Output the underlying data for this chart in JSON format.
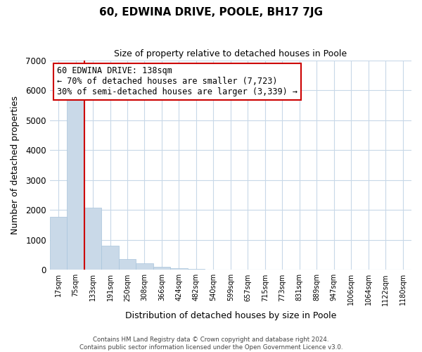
{
  "title": "60, EDWINA DRIVE, POOLE, BH17 7JG",
  "subtitle": "Size of property relative to detached houses in Poole",
  "xlabel": "Distribution of detached houses by size in Poole",
  "ylabel": "Number of detached properties",
  "bar_labels": [
    "17sqm",
    "75sqm",
    "133sqm",
    "191sqm",
    "250sqm",
    "308sqm",
    "366sqm",
    "424sqm",
    "482sqm",
    "540sqm",
    "599sqm",
    "657sqm",
    "715sqm",
    "773sqm",
    "831sqm",
    "889sqm",
    "947sqm",
    "1006sqm",
    "1064sqm",
    "1122sqm",
    "1180sqm"
  ],
  "bar_values": [
    1775,
    5780,
    2075,
    810,
    365,
    225,
    105,
    55,
    35,
    10,
    0,
    0,
    0,
    0,
    0,
    0,
    0,
    0,
    0,
    0,
    0
  ],
  "bar_color": "#c9d9e8",
  "bar_edge_color": "#a8c4dc",
  "highlight_color": "#cc0000",
  "highlight_bar_index": 2,
  "annotation_title": "60 EDWINA DRIVE: 138sqm",
  "annotation_line1": "← 70% of detached houses are smaller (7,723)",
  "annotation_line2": "30% of semi-detached houses are larger (3,339) →",
  "annotation_box_color": "#ffffff",
  "annotation_box_edge": "#cc0000",
  "ylim": [
    0,
    7000
  ],
  "yticks": [
    0,
    1000,
    2000,
    3000,
    4000,
    5000,
    6000,
    7000
  ],
  "footer_line1": "Contains HM Land Registry data © Crown copyright and database right 2024.",
  "footer_line2": "Contains public sector information licensed under the Open Government Licence v3.0.",
  "grid_color": "#c8d8e8",
  "title_fontsize": 11,
  "subtitle_fontsize": 9
}
